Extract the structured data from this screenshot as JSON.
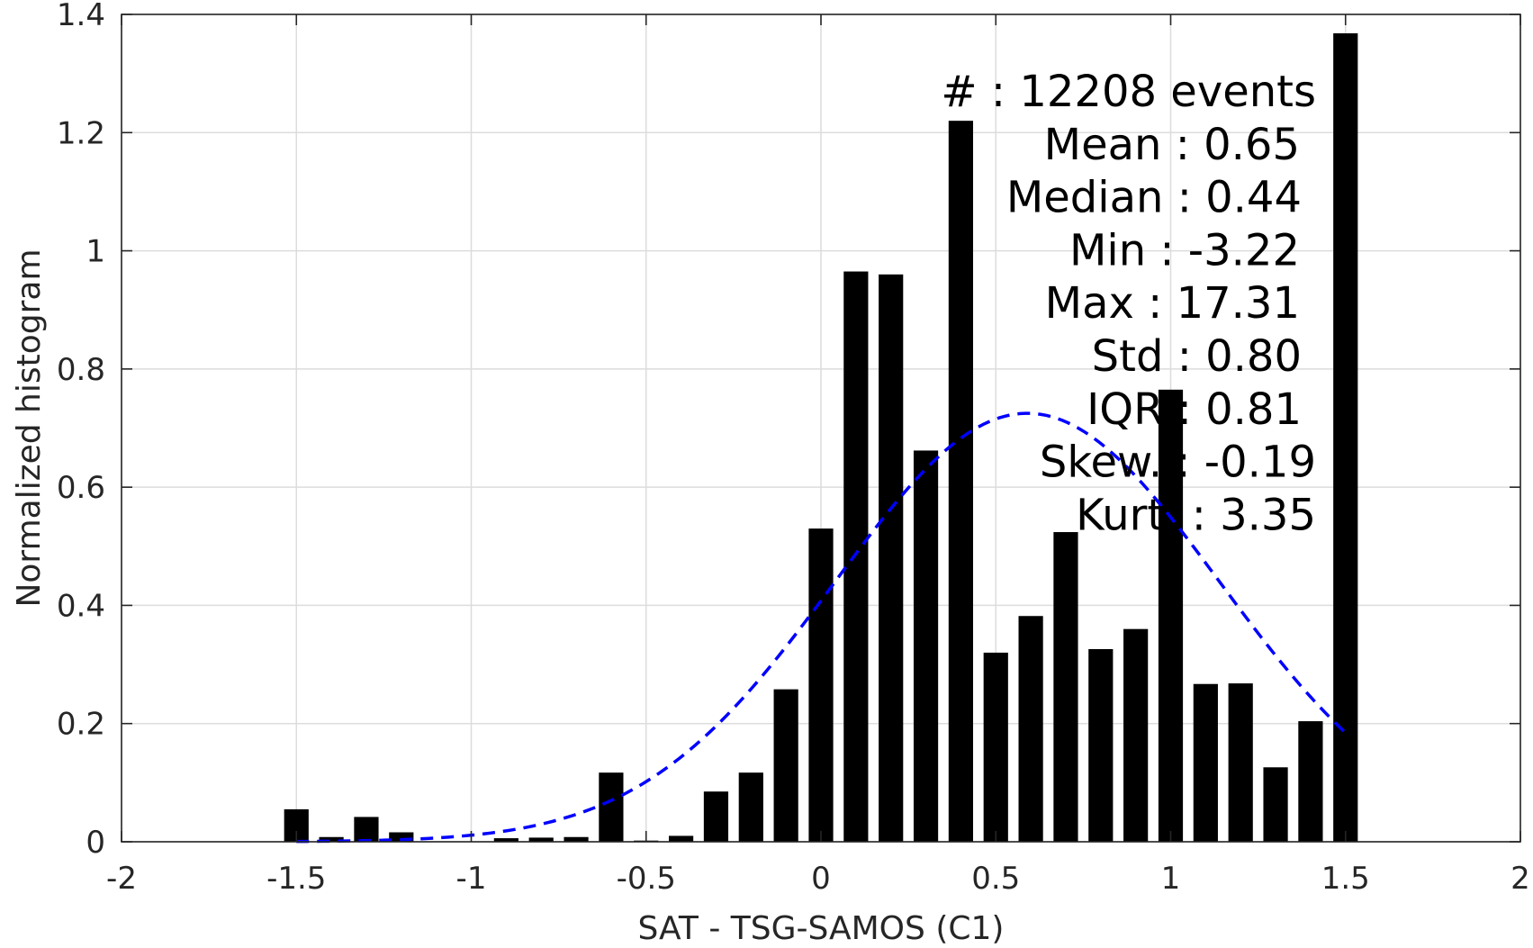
{
  "chart_data": {
    "type": "bar",
    "xlabel": "SAT - TSG-SAMOS (C1)",
    "ylabel": "Normalized histogram",
    "xlim": [
      -2,
      2
    ],
    "ylim": [
      0,
      1.4
    ],
    "x_ticks": [
      -2,
      -1.5,
      -1,
      -0.5,
      0,
      0.5,
      1,
      1.5,
      2
    ],
    "x_tick_labels": [
      "-2",
      "-1.5",
      "-1",
      "-0.5",
      "0",
      "0.5",
      "1",
      "1.5",
      "2"
    ],
    "y_ticks": [
      0,
      0.2,
      0.4,
      0.6,
      0.8,
      1,
      1.2,
      1.4
    ],
    "y_tick_labels": [
      "0",
      "0.2",
      "0.4",
      "0.6",
      "0.8",
      "1",
      "1.2",
      "1.4"
    ],
    "grid": true,
    "bar_color": "#000000",
    "bar_width": 0.07,
    "bins": [
      {
        "x": -1.5,
        "y": 0.055
      },
      {
        "x": -1.4,
        "y": 0.008
      },
      {
        "x": -1.3,
        "y": 0.042
      },
      {
        "x": -1.2,
        "y": 0.016
      },
      {
        "x": -1.1,
        "y": 0.0
      },
      {
        "x": -1.0,
        "y": 0.0
      },
      {
        "x": -0.9,
        "y": 0.006
      },
      {
        "x": -0.8,
        "y": 0.007
      },
      {
        "x": -0.7,
        "y": 0.008
      },
      {
        "x": -0.6,
        "y": 0.117
      },
      {
        "x": -0.5,
        "y": 0.002
      },
      {
        "x": -0.4,
        "y": 0.01
      },
      {
        "x": -0.3,
        "y": 0.085
      },
      {
        "x": -0.2,
        "y": 0.117
      },
      {
        "x": -0.1,
        "y": 0.258
      },
      {
        "x": 0.0,
        "y": 0.53
      },
      {
        "x": 0.1,
        "y": 0.965
      },
      {
        "x": 0.2,
        "y": 0.96
      },
      {
        "x": 0.3,
        "y": 0.662
      },
      {
        "x": 0.4,
        "y": 1.22
      },
      {
        "x": 0.5,
        "y": 0.32
      },
      {
        "x": 0.6,
        "y": 0.382
      },
      {
        "x": 0.7,
        "y": 0.524
      },
      {
        "x": 0.8,
        "y": 0.326
      },
      {
        "x": 0.9,
        "y": 0.36
      },
      {
        "x": 1.0,
        "y": 0.765
      },
      {
        "x": 1.1,
        "y": 0.267
      },
      {
        "x": 1.2,
        "y": 0.268
      },
      {
        "x": 1.3,
        "y": 0.126
      },
      {
        "x": 1.4,
        "y": 0.204
      },
      {
        "x": 1.5,
        "y": 1.368
      }
    ],
    "fit_curve": {
      "style": "dashed",
      "color": "#0000ff",
      "mean": 0.59,
      "std": 0.55,
      "peak": 0.725,
      "x_range": [
        -1.5,
        1.5
      ]
    },
    "stats": [
      {
        "label": "#  : 12208 events"
      },
      {
        "label": "Mean : 0.65"
      },
      {
        "label": "Median : 0.44"
      },
      {
        "label": "Min : -3.22"
      },
      {
        "label": "Max : 17.31"
      },
      {
        "label": "Std : 0.80"
      },
      {
        "label": "IQR : 0.81"
      },
      {
        "label": "Skew. : -0.19"
      },
      {
        "label": "Kurt. : 3.35"
      }
    ]
  }
}
